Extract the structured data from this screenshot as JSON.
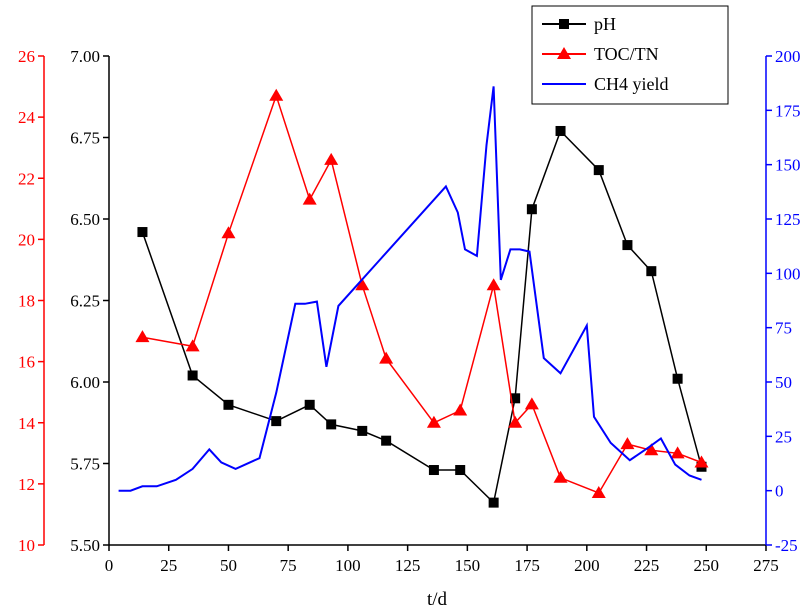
{
  "chart_data": {
    "type": "line",
    "xlabel": "t/d",
    "x_axis": {
      "range": [
        0,
        275
      ],
      "ticks": [
        0,
        25,
        50,
        75,
        100,
        125,
        150,
        175,
        200,
        225,
        250,
        275
      ],
      "tick_labels": [
        "0",
        "25",
        "50",
        "75",
        "100",
        "125",
        "150",
        "175",
        "200",
        "225",
        "250",
        "275"
      ]
    },
    "y_axes": {
      "ph": {
        "side": "left-inner",
        "range": [
          5.5,
          7.0
        ],
        "ticks": [
          5.5,
          5.75,
          6.0,
          6.25,
          6.5,
          6.75,
          7.0
        ],
        "tick_labels": [
          "5.50",
          "5.75",
          "6.00",
          "6.25",
          "6.50",
          "6.75",
          "7.00"
        ],
        "color": "#000000"
      },
      "toc_tn": {
        "side": "left-outer",
        "range": [
          10,
          26
        ],
        "ticks": [
          10,
          12,
          14,
          16,
          18,
          20,
          22,
          24,
          26
        ],
        "tick_labels": [
          "10",
          "12",
          "14",
          "16",
          "18",
          "20",
          "22",
          "24",
          "26"
        ],
        "color": "#ff0000"
      },
      "ch4": {
        "side": "right",
        "range": [
          -25,
          200
        ],
        "ticks": [
          -25,
          0,
          25,
          50,
          75,
          100,
          125,
          150,
          175,
          200
        ],
        "tick_labels": [
          "-25",
          "0",
          "25",
          "50",
          "75",
          "100",
          "125",
          "150",
          "175",
          "200"
        ],
        "color": "#0000ff"
      }
    },
    "series": [
      {
        "name": "pH",
        "axis": "ph",
        "color": "#000000",
        "marker": "square",
        "x": [
          14,
          35,
          50,
          70,
          84,
          93,
          106,
          116,
          136,
          147,
          161,
          170,
          177,
          189,
          205,
          217,
          227,
          238,
          248
        ],
        "y": [
          6.46,
          6.02,
          5.93,
          5.88,
          5.93,
          5.87,
          5.85,
          5.82,
          5.73,
          5.73,
          5.63,
          5.95,
          6.53,
          6.77,
          6.65,
          6.42,
          6.34,
          6.01,
          5.74
        ]
      },
      {
        "name": "TOC/TN",
        "axis": "toc_tn",
        "color": "#ff0000",
        "marker": "triangle",
        "x": [
          14,
          35,
          50,
          70,
          84,
          93,
          106,
          116,
          136,
          147,
          161,
          170,
          177,
          189,
          205,
          217,
          227,
          238,
          248
        ],
        "y": [
          16.8,
          16.5,
          20.2,
          24.7,
          21.3,
          22.6,
          18.5,
          16.1,
          14.0,
          14.4,
          18.5,
          14.0,
          14.6,
          12.2,
          11.7,
          13.3,
          13.1,
          13.0,
          12.7
        ]
      },
      {
        "name": "CH4 yield",
        "axis": "ch4",
        "color": "#0000ff",
        "marker": "none",
        "x": [
          4,
          9,
          14,
          20,
          28,
          35,
          42,
          47,
          53,
          63,
          70,
          78,
          82,
          87,
          91,
          96,
          141,
          146,
          149,
          154,
          158,
          161,
          164,
          168,
          172,
          176,
          182,
          189,
          200,
          203,
          210,
          218,
          226,
          231,
          237,
          243,
          248
        ],
        "y": [
          0,
          0,
          2,
          2,
          5,
          10,
          19,
          13,
          10,
          15,
          45,
          86,
          86,
          87,
          57,
          85,
          140,
          128,
          111,
          108,
          159,
          186,
          97,
          111,
          111,
          110,
          61,
          54,
          76,
          34,
          22,
          14,
          20,
          24,
          12,
          7,
          5
        ]
      }
    ],
    "legend": {
      "placement": "top-right",
      "entries": [
        "pH",
        "TOC/TN",
        "CH4 yield"
      ]
    }
  }
}
